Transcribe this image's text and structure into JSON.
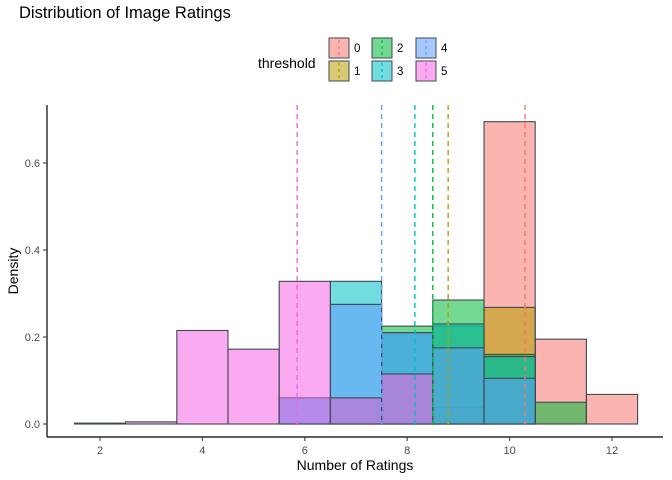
{
  "chart_data": {
    "type": "histogram",
    "title": "Distribution of Image Ratings",
    "xlabel": "Number of Ratings",
    "ylabel": "Density",
    "xlim": [
      1.5,
      12.5
    ],
    "ylim": [
      0,
      0.72
    ],
    "x_ticks": [
      2,
      4,
      6,
      8,
      10,
      12
    ],
    "y_ticks": [
      0.0,
      0.2,
      0.4,
      0.6
    ],
    "y_tick_labels": [
      "0.0",
      "0.2",
      "0.4",
      "0.6"
    ],
    "grid": false,
    "bin_width": 1,
    "legend": {
      "title": "threshold",
      "placement": "top",
      "entries": [
        "0",
        "1",
        "2",
        "3",
        "4",
        "5"
      ]
    },
    "series": [
      {
        "name": "0",
        "color": "#F8766D",
        "bins": [
          {
            "x": 10,
            "density": 0.695
          },
          {
            "x": 11,
            "density": 0.195
          },
          {
            "x": 12,
            "density": 0.068
          },
          {
            "x": 9,
            "density": 0.038
          }
        ],
        "mean": 10.3
      },
      {
        "name": "1",
        "color": "#B79F00",
        "bins": [
          {
            "x": 9,
            "density": 0.225
          },
          {
            "x": 10,
            "density": 0.268
          },
          {
            "x": 8,
            "density": 0.115
          }
        ],
        "mean": 8.8
      },
      {
        "name": "2",
        "color": "#00BA38",
        "bins": [
          {
            "x": 7,
            "density": 0.06
          },
          {
            "x": 8,
            "density": 0.225
          },
          {
            "x": 9,
            "density": 0.285
          },
          {
            "x": 10,
            "density": 0.16
          },
          {
            "x": 11,
            "density": 0.05
          }
        ],
        "mean": 8.5
      },
      {
        "name": "3",
        "color": "#00BFC4",
        "bins": [
          {
            "x": 6,
            "density": 0.06
          },
          {
            "x": 7,
            "density": 0.328
          },
          {
            "x": 8,
            "density": 0.21
          },
          {
            "x": 9,
            "density": 0.23
          },
          {
            "x": 10,
            "density": 0.155
          }
        ],
        "mean": 8.15
      },
      {
        "name": "4",
        "color": "#619CFF",
        "bins": [
          {
            "x": 6,
            "density": 0.06
          },
          {
            "x": 7,
            "density": 0.275
          },
          {
            "x": 8,
            "density": 0.21
          },
          {
            "x": 9,
            "density": 0.175
          },
          {
            "x": 10,
            "density": 0.105
          }
        ],
        "mean": 7.5
      },
      {
        "name": "5",
        "color": "#F564E3",
        "bins": [
          {
            "x": 2,
            "density": 0.002
          },
          {
            "x": 3,
            "density": 0.005
          },
          {
            "x": 4,
            "density": 0.215
          },
          {
            "x": 5,
            "density": 0.172
          },
          {
            "x": 6,
            "density": 0.328
          },
          {
            "x": 7,
            "density": 0.06
          },
          {
            "x": 8,
            "density": 0.115
          }
        ],
        "mean": 5.85
      }
    ]
  }
}
